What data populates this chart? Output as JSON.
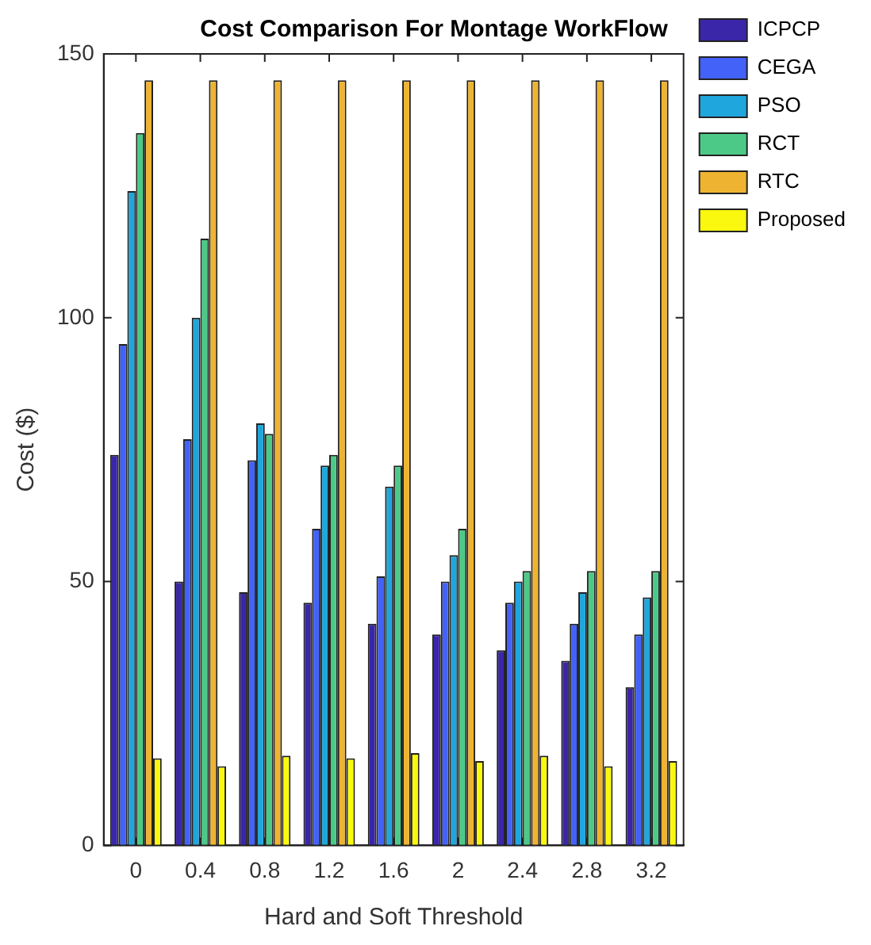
{
  "chart_data": {
    "type": "bar",
    "title": "Cost Comparison For Montage WorkFlow",
    "xlabel": "Hard and Soft Threshold",
    "ylabel": "Cost ($)",
    "categories": [
      "0",
      "0.4",
      "0.8",
      "1.2",
      "1.6",
      "2",
      "2.4",
      "2.8",
      "3.2"
    ],
    "series": [
      {
        "name": "ICPCP",
        "color": "#3a26a8",
        "values": [
          74,
          50,
          48,
          46,
          42,
          40,
          37,
          35,
          30
        ]
      },
      {
        "name": "CEGA",
        "color": "#4262f8",
        "values": [
          95,
          77,
          73,
          60,
          51,
          50,
          46,
          42,
          40
        ]
      },
      {
        "name": "PSO",
        "color": "#1fa6dd",
        "values": [
          124,
          100,
          80,
          72,
          68,
          55,
          50,
          48,
          47
        ]
      },
      {
        "name": "RCT",
        "color": "#4cc987",
        "values": [
          135,
          115,
          78,
          74,
          72,
          60,
          52,
          52,
          52
        ]
      },
      {
        "name": "RTC",
        "color": "#eeb330",
        "values": [
          145,
          145,
          145,
          145,
          145,
          145,
          145,
          145,
          145
        ]
      },
      {
        "name": "Proposed",
        "color": "#f9f80e",
        "values": [
          16.5,
          15,
          17,
          16.5,
          17.5,
          16,
          17,
          15,
          16
        ]
      }
    ],
    "ylim": [
      0,
      150
    ],
    "yticks": [
      0,
      50,
      100,
      150
    ],
    "grid": false,
    "legend": "right"
  }
}
